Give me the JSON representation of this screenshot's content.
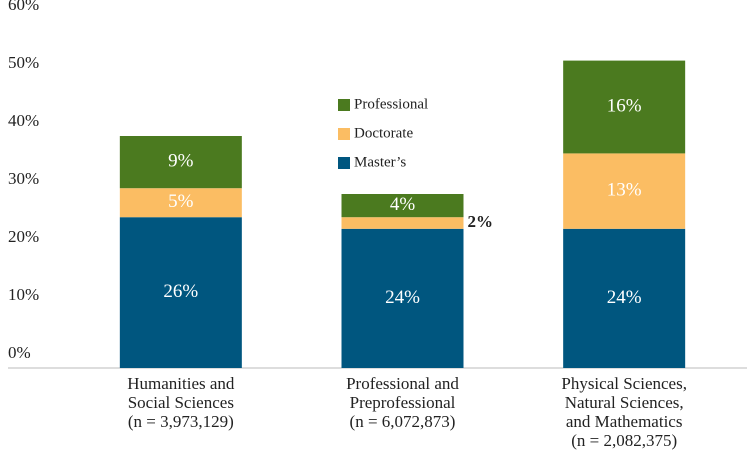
{
  "chart_data": {
    "type": "stacked_bar",
    "categories": [
      "Humanities and\nSocial Sciences\n(n = 3,973,129)",
      "Professional and\nPreprofessional\n(n = 6,072,873)",
      "Physical Sciences,\nNatural Sciences,\nand Mathematics\n(n = 2,082,375)"
    ],
    "series": [
      {
        "name": "Master’s",
        "color": "#00567f",
        "values": [
          26,
          24,
          24
        ],
        "value_labels": [
          "26%",
          "24%",
          "24%"
        ]
      },
      {
        "name": "Doctorate",
        "color": "#fbbd63",
        "values": [
          5,
          2,
          13
        ],
        "value_labels": [
          "5%",
          "2%",
          "13%"
        ]
      },
      {
        "name": "Professional",
        "color": "#4b7a1f",
        "values": [
          9,
          4,
          16
        ],
        "value_labels": [
          "9%",
          "4%",
          "16%"
        ]
      }
    ],
    "ylim": [
      0,
      60
    ],
    "yticks": [
      {
        "value": 0,
        "label": "0%"
      },
      {
        "value": 10,
        "label": "10%"
      },
      {
        "value": 20,
        "label": "20%"
      },
      {
        "value": 30,
        "label": "30%"
      },
      {
        "value": 40,
        "label": "40%"
      },
      {
        "value": 50,
        "label": "50%"
      },
      {
        "value": 60,
        "label": "60%"
      }
    ],
    "grid": false,
    "legend": "center"
  }
}
